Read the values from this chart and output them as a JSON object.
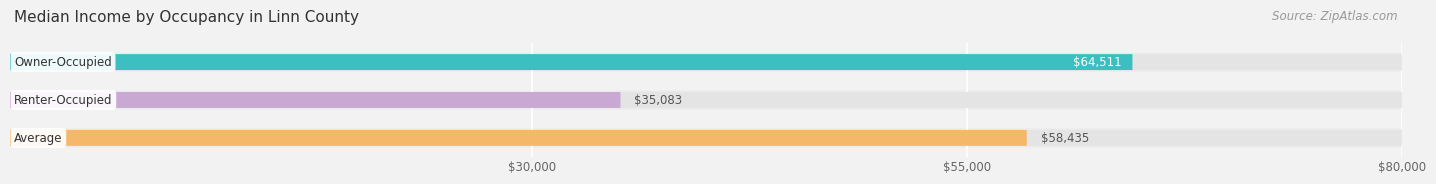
{
  "title": "Median Income by Occupancy in Linn County",
  "source": "Source: ZipAtlas.com",
  "categories": [
    "Owner-Occupied",
    "Renter-Occupied",
    "Average"
  ],
  "values": [
    64511,
    35083,
    58435
  ],
  "bar_colors": [
    "#3bbfc0",
    "#c9a8d4",
    "#f5b86b"
  ],
  "label_inside": [
    true,
    false,
    false
  ],
  "xmin": 0,
  "xmax": 80000,
  "xticks": [
    30000,
    55000,
    80000
  ],
  "xtick_labels": [
    "$30,000",
    "$55,000",
    "$80,000"
  ],
  "background_color": "#f2f2f2",
  "bar_background_color": "#e4e4e4",
  "row_background_color": "#ebebeb",
  "title_fontsize": 11,
  "source_fontsize": 8.5,
  "label_fontsize": 8.5,
  "tick_fontsize": 8.5,
  "value_label_color_inside": "#ffffff",
  "value_label_color_outside": "#555555",
  "cat_label_color": "#333333"
}
